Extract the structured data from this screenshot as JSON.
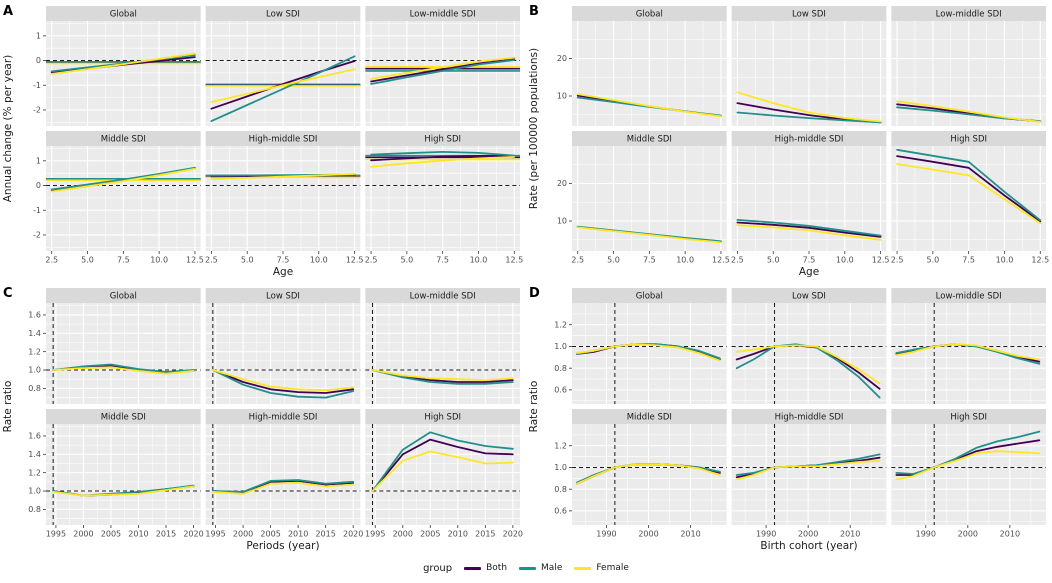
{
  "figure": {
    "legend": {
      "title": "group",
      "entries": [
        {
          "label": "Both",
          "color": "#440154"
        },
        {
          "label": "Male",
          "color": "#21908C"
        },
        {
          "label": "Female",
          "color": "#FDE725"
        }
      ]
    },
    "panel_background": "#EBEBEB",
    "strip_background": "#D9D9D9",
    "grid_color": "#FFFFFF",
    "reference_line_color": "#1a1a1a"
  },
  "chart_data": {
    "type": "line",
    "series_names": [
      "Both",
      "Male",
      "Female"
    ],
    "series_colors": [
      "#440154",
      "#21908C",
      "#FDE725"
    ],
    "panels": [
      {
        "label": "A",
        "ylabel": "Annual change (% per year)",
        "xlabel": "Age",
        "x": [
          2.5,
          5,
          7.5,
          10,
          12.5
        ],
        "xlim": [
          2.1,
          12.9
        ],
        "xticks": [
          2.5,
          5,
          7.5,
          10,
          12.5
        ],
        "xticklabels": [
          "2.5",
          "5.0",
          "7.5",
          "10.0",
          "12.5"
        ],
        "ylim": [
          -2.65,
          1.6
        ],
        "yticks": [
          1,
          0,
          -1,
          -2
        ],
        "yticklabels": [
          "1",
          "0",
          "-1",
          "-2"
        ],
        "hline": 0,
        "facets": [
          {
            "title": "Global",
            "netdrift": [
              -0.08,
              -0.05,
              -0.12
            ],
            "series": [
              [
                -0.48,
                -0.33,
                -0.17,
                -0.02,
                0.14
              ],
              [
                -0.44,
                -0.28,
                -0.12,
                0.05,
                0.22
              ],
              [
                -0.54,
                -0.35,
                -0.15,
                0.07,
                0.28
              ]
            ]
          },
          {
            "title": "Low SDI",
            "netdrift": [
              -0.97,
              -1.0,
              -1.03
            ],
            "series": [
              [
                -1.95,
                -1.45,
                -0.95,
                -0.47,
                -0.02
              ],
              [
                -2.45,
                -1.8,
                -1.15,
                -0.5,
                0.17
              ],
              [
                -1.68,
                -1.35,
                -1.0,
                -0.67,
                -0.35
              ]
            ]
          },
          {
            "title": "Low-middle SDI",
            "netdrift": [
              -0.33,
              -0.42,
              -0.25
            ],
            "series": [
              [
                -0.85,
                -0.6,
                -0.36,
                -0.12,
                0.05
              ],
              [
                -0.95,
                -0.68,
                -0.42,
                -0.16,
                0.02
              ],
              [
                -0.74,
                -0.5,
                -0.27,
                -0.04,
                0.12
              ]
            ]
          },
          {
            "title": "Middle SDI",
            "netdrift": [
              0.25,
              0.27,
              0.21
            ],
            "series": [
              [
                -0.18,
                0.02,
                0.22,
                0.45,
                0.7
              ],
              [
                -0.16,
                0.04,
                0.24,
                0.47,
                0.72
              ],
              [
                -0.24,
                -0.03,
                0.18,
                0.42,
                0.68
              ]
            ]
          },
          {
            "title": "High-middle SDI",
            "netdrift": [
              0.38,
              0.41,
              0.33
            ],
            "series": [
              [
                0.37,
                0.38,
                0.4,
                0.42,
                0.44
              ],
              [
                0.4,
                0.41,
                0.42,
                0.43,
                0.45
              ],
              [
                0.26,
                0.31,
                0.36,
                0.41,
                0.47
              ]
            ]
          },
          {
            "title": "High SDI",
            "netdrift": [
              1.14,
              1.21,
              1.05
            ],
            "series": [
              [
                1.02,
                1.1,
                1.17,
                1.2,
                1.19
              ],
              [
                1.25,
                1.31,
                1.36,
                1.32,
                1.21
              ],
              [
                0.76,
                0.9,
                1.01,
                1.1,
                1.16
              ]
            ]
          }
        ]
      },
      {
        "label": "B",
        "ylabel": "Rate (per 100000 populations)",
        "xlabel": "Age",
        "x": [
          2.5,
          5,
          7.5,
          10,
          12.5
        ],
        "xlim": [
          2.1,
          12.9
        ],
        "xticks": [
          2.5,
          5,
          7.5,
          10,
          12.5
        ],
        "xticklabels": [
          "2.5",
          "5.0",
          "7.5",
          "10.0",
          "12.5"
        ],
        "ylim": [
          2,
          30
        ],
        "yticks": [
          20,
          10
        ],
        "yticklabels": [
          "20",
          "10"
        ],
        "facets": [
          {
            "title": "Global",
            "series": [
              [
                10.1,
                8.7,
                7.2,
                5.9,
                4.7
              ],
              [
                9.6,
                8.4,
                7.1,
                5.9,
                4.8
              ],
              [
                10.5,
                8.9,
                7.3,
                5.8,
                4.6
              ]
            ]
          },
          {
            "title": "Low SDI",
            "series": [
              [
                8.1,
                6.4,
                4.9,
                3.7,
                3.0
              ],
              [
                5.6,
                4.8,
                4.1,
                3.5,
                3.0
              ],
              [
                11.0,
                8.1,
                5.6,
                4.1,
                3.2
              ]
            ]
          },
          {
            "title": "Low-middle SDI",
            "series": [
              [
                7.8,
                6.7,
                5.4,
                4.1,
                3.2
              ],
              [
                7.0,
                6.1,
                5.1,
                4.0,
                3.3
              ],
              [
                8.6,
                7.3,
                5.8,
                4.3,
                3.1
              ]
            ]
          },
          {
            "title": "Middle SDI",
            "series": [
              [
                8.4,
                7.4,
                6.4,
                5.4,
                4.5
              ],
              [
                8.5,
                7.5,
                6.5,
                5.5,
                4.6
              ],
              [
                8.3,
                7.3,
                6.3,
                5.2,
                4.3
              ]
            ]
          },
          {
            "title": "High-middle SDI",
            "series": [
              [
                9.6,
                9.0,
                8.2,
                6.9,
                5.8
              ],
              [
                10.3,
                9.6,
                8.7,
                7.4,
                6.1
              ],
              [
                8.9,
                8.3,
                7.5,
                6.2,
                5.0
              ]
            ]
          },
          {
            "title": "High SDI",
            "series": [
              [
                27.3,
                25.8,
                24.2,
                16.8,
                9.9
              ],
              [
                29.0,
                27.4,
                25.8,
                17.8,
                10.2
              ],
              [
                25.2,
                23.7,
                22.2,
                15.8,
                9.4
              ]
            ]
          }
        ]
      },
      {
        "label": "C",
        "ylabel": "Rate ratio",
        "xlabel": "Periods (year)",
        "x": [
          1994.5,
          2000,
          2005,
          2010,
          2015,
          2020
        ],
        "xlim": [
          1993.2,
          2021.3
        ],
        "xticks": [
          1995,
          2000,
          2005,
          2010,
          2015,
          2020
        ],
        "xticklabels": [
          "1995",
          "2000",
          "2005",
          "2010",
          "2015",
          "2020"
        ],
        "ylim": [
          0.63,
          1.73
        ],
        "yticks": [
          1.6,
          1.4,
          1.2,
          1.0,
          0.8
        ],
        "yticklabels": [
          "1.6",
          "1.4",
          "1.2",
          "1.0",
          "0.8"
        ],
        "hline": 1.0,
        "vline": 1994.5,
        "facets": [
          {
            "title": "Global",
            "series": [
              [
                1.0,
                1.03,
                1.05,
                1.0,
                0.97,
                0.99
              ],
              [
                1.0,
                1.04,
                1.06,
                1.01,
                0.98,
                1.0
              ],
              [
                1.0,
                1.02,
                1.03,
                0.99,
                0.96,
                0.99
              ]
            ]
          },
          {
            "title": "Low SDI",
            "series": [
              [
                1.0,
                0.87,
                0.79,
                0.76,
                0.75,
                0.79
              ],
              [
                1.0,
                0.84,
                0.75,
                0.71,
                0.7,
                0.77
              ],
              [
                1.0,
                0.9,
                0.82,
                0.79,
                0.78,
                0.81
              ]
            ]
          },
          {
            "title": "Low-middle SDI",
            "series": [
              [
                1.0,
                0.93,
                0.89,
                0.87,
                0.87,
                0.89
              ],
              [
                1.0,
                0.92,
                0.87,
                0.85,
                0.85,
                0.87
              ],
              [
                1.0,
                0.94,
                0.91,
                0.9,
                0.89,
                0.91
              ]
            ]
          },
          {
            "title": "Middle SDI",
            "series": [
              [
                1.0,
                0.95,
                0.96,
                0.98,
                1.02,
                1.05
              ],
              [
                1.0,
                0.95,
                0.97,
                0.99,
                1.02,
                1.06
              ],
              [
                0.99,
                0.95,
                0.96,
                0.97,
                1.01,
                1.05
              ]
            ]
          },
          {
            "title": "High-middle SDI",
            "series": [
              [
                1.0,
                0.98,
                1.1,
                1.11,
                1.07,
                1.09
              ],
              [
                1.0,
                0.99,
                1.11,
                1.12,
                1.08,
                1.1
              ],
              [
                0.99,
                0.97,
                1.08,
                1.09,
                1.05,
                1.07
              ]
            ]
          },
          {
            "title": "High SDI",
            "series": [
              [
                1.0,
                1.4,
                1.56,
                1.48,
                1.41,
                1.4
              ],
              [
                1.0,
                1.45,
                1.64,
                1.55,
                1.49,
                1.46
              ],
              [
                1.0,
                1.33,
                1.43,
                1.37,
                1.3,
                1.31
              ]
            ]
          }
        ]
      },
      {
        "label": "D",
        "ylabel": "Rate ratio",
        "xlabel": "Birth cohort (year)",
        "x": [
          1983,
          1987,
          1992,
          1997,
          2002,
          2007,
          2012,
          2017
        ],
        "xlim": [
          1981.8,
          2018.6
        ],
        "xticks": [
          1990,
          2000,
          2010
        ],
        "xticklabels": [
          "1990",
          "2000",
          "2010"
        ],
        "ylim": [
          0.47,
          1.4
        ],
        "yticks": [
          1.2,
          1.0,
          0.8,
          0.6
        ],
        "yticklabels": [
          "1.2",
          "1.0",
          "0.8",
          "0.6"
        ],
        "hline": 1.0,
        "vline": 1992,
        "facets": [
          {
            "title": "Global",
            "series": [
              [
                0.93,
                0.95,
                1.0,
                1.02,
                1.02,
                1.0,
                0.95,
                0.88
              ],
              [
                0.93,
                0.96,
                1.0,
                1.02,
                1.02,
                1.0,
                0.96,
                0.89
              ],
              [
                0.94,
                0.96,
                1.0,
                1.02,
                1.01,
                0.99,
                0.94,
                0.87
              ]
            ]
          },
          {
            "title": "Low SDI",
            "series": [
              [
                0.88,
                0.93,
                1.0,
                1.01,
                0.99,
                0.89,
                0.76,
                0.61
              ],
              [
                0.8,
                0.88,
                1.0,
                1.02,
                0.99,
                0.87,
                0.72,
                0.53
              ],
              [
                0.95,
                0.97,
                1.0,
                1.01,
                1.0,
                0.9,
                0.79,
                0.66
              ]
            ]
          },
          {
            "title": "Low-middle SDI",
            "series": [
              [
                0.93,
                0.96,
                1.0,
                1.02,
                1.0,
                0.96,
                0.9,
                0.86
              ],
              [
                0.94,
                0.97,
                1.0,
                1.02,
                1.0,
                0.95,
                0.89,
                0.84
              ],
              [
                0.92,
                0.95,
                1.0,
                1.02,
                1.01,
                0.96,
                0.91,
                0.88
              ]
            ]
          },
          {
            "title": "Middle SDI",
            "series": [
              [
                0.85,
                0.92,
                1.0,
                1.03,
                1.03,
                1.02,
                1.0,
                0.95
              ],
              [
                0.86,
                0.93,
                1.0,
                1.03,
                1.03,
                1.02,
                1.0,
                0.96
              ],
              [
                0.85,
                0.92,
                1.0,
                1.03,
                1.03,
                1.02,
                0.99,
                0.93
              ]
            ]
          },
          {
            "title": "High-middle SDI",
            "series": [
              [
                0.91,
                0.94,
                1.0,
                1.01,
                1.02,
                1.04,
                1.06,
                1.09
              ],
              [
                0.93,
                0.95,
                1.0,
                1.01,
                1.02,
                1.05,
                1.08,
                1.12
              ],
              [
                0.89,
                0.93,
                1.0,
                1.01,
                1.01,
                1.03,
                1.05,
                1.06
              ]
            ]
          },
          {
            "title": "High SDI",
            "series": [
              [
                0.93,
                0.93,
                1.0,
                1.07,
                1.15,
                1.19,
                1.22,
                1.25
              ],
              [
                0.95,
                0.94,
                1.0,
                1.08,
                1.18,
                1.24,
                1.28,
                1.33
              ],
              [
                0.89,
                0.92,
                1.0,
                1.06,
                1.13,
                1.15,
                1.14,
                1.13
              ]
            ]
          }
        ]
      }
    ]
  }
}
